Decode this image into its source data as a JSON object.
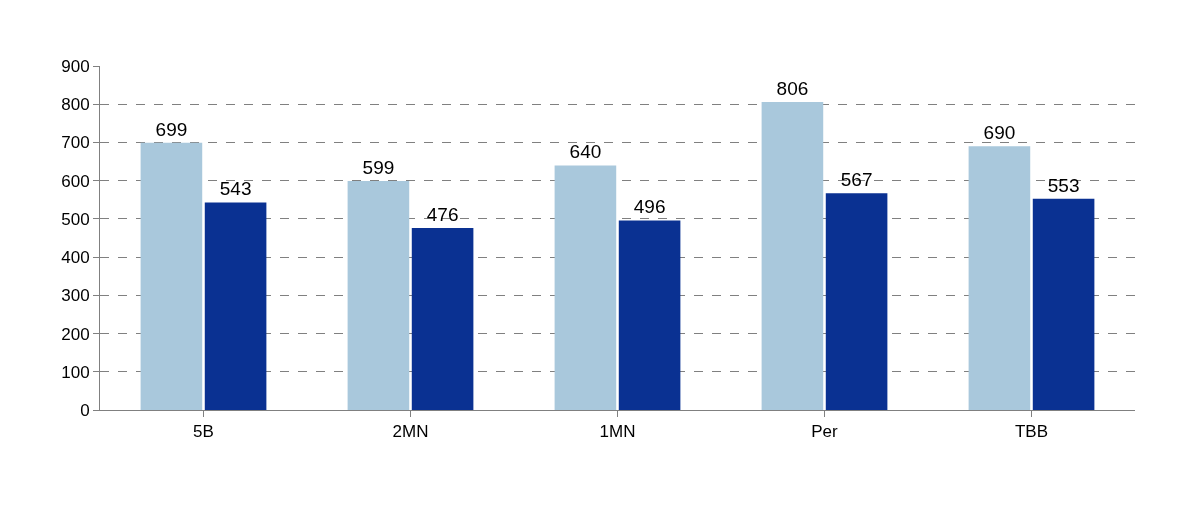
{
  "chart_data": {
    "type": "bar",
    "categories": [
      "5B",
      "2MN",
      "1MN",
      "Per",
      "TBB"
    ],
    "series": [
      {
        "color": "#a9c8dc",
        "values": [
          699,
          599,
          640,
          806,
          690
        ]
      },
      {
        "color": "#0a3192",
        "values": [
          543,
          476,
          496,
          567,
          553
        ]
      }
    ],
    "ylim": [
      0,
      900
    ],
    "yticks": [
      0,
      100,
      200,
      300,
      400,
      500,
      600,
      700,
      800,
      900
    ],
    "grid": "y",
    "line_style": "dashed",
    "data_labels": true,
    "legend": false
  }
}
